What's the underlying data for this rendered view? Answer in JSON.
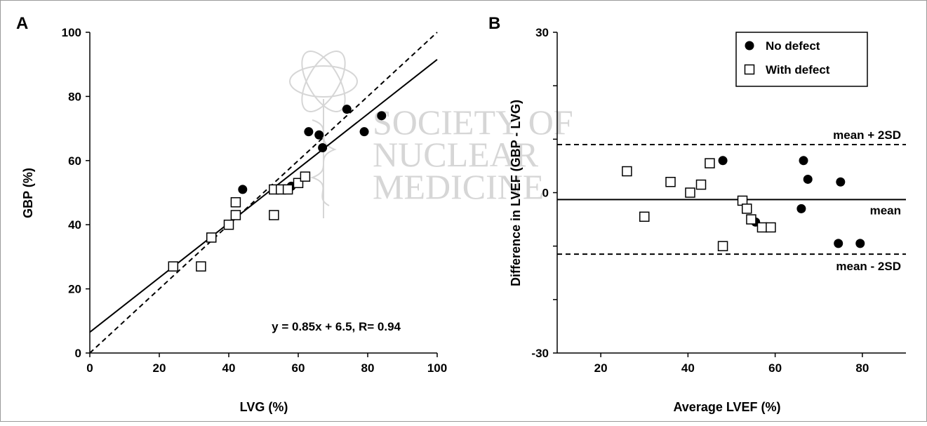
{
  "chart_data": [
    {
      "type": "scatter",
      "panel_label": "A",
      "xlabel": "LVG (%)",
      "ylabel": "GBP (%)",
      "xlim": [
        0,
        100
      ],
      "ylim": [
        0,
        100
      ],
      "xticks": [
        0,
        20,
        40,
        60,
        80,
        100
      ],
      "yticks": [
        0,
        20,
        40,
        60,
        80,
        100
      ],
      "series": [
        {
          "marker": "filled-circle",
          "color": "#000000",
          "points": [
            [
              44,
              51
            ],
            [
              58,
              52
            ],
            [
              63,
              69
            ],
            [
              66,
              68
            ],
            [
              67,
              64
            ],
            [
              74,
              76
            ],
            [
              79,
              69
            ],
            [
              84,
              74
            ]
          ]
        },
        {
          "marker": "open-square",
          "color": "#000000",
          "points": [
            [
              24,
              27
            ],
            [
              32,
              27
            ],
            [
              35,
              36
            ],
            [
              40,
              40
            ],
            [
              42,
              47
            ],
            [
              42,
              43
            ],
            [
              53,
              51
            ],
            [
              53,
              43
            ],
            [
              55,
              51
            ],
            [
              57,
              51
            ],
            [
              60,
              53
            ],
            [
              62,
              55
            ]
          ]
        }
      ],
      "lines": [
        {
          "style": "solid",
          "slope": 0.85,
          "intercept": 6.5
        },
        {
          "style": "dashed",
          "slope": 1,
          "intercept": 0
        }
      ],
      "annotation": "y = 0.85x + 6.5, R= 0.94"
    },
    {
      "type": "scatter",
      "panel_label": "B",
      "xlabel": "Average LVEF (%)",
      "ylabel": "Difference in LVEF (GBP - LVG)",
      "xlim": [
        10,
        90
      ],
      "ylim": [
        -30,
        30
      ],
      "xticks": [
        20,
        40,
        60,
        80
      ],
      "yticks": [
        -30,
        0,
        30
      ],
      "yminor": [
        -20,
        -10,
        10,
        20
      ],
      "series": [
        {
          "name": "No defect",
          "marker": "filled-circle",
          "color": "#000000",
          "points": [
            [
              48,
              6
            ],
            [
              55.5,
              -5.5
            ],
            [
              66,
              -3
            ],
            [
              66.5,
              6
            ],
            [
              67.5,
              2.5
            ],
            [
              74.5,
              -9.5
            ],
            [
              75,
              2
            ],
            [
              79.5,
              -9.5
            ]
          ]
        },
        {
          "name": "With defect",
          "marker": "open-square",
          "color": "#000000",
          "points": [
            [
              26,
              4
            ],
            [
              30,
              -4.5
            ],
            [
              36,
              2
            ],
            [
              40.5,
              0
            ],
            [
              43,
              1.5
            ],
            [
              45,
              5.5
            ],
            [
              48,
              -10
            ],
            [
              52.5,
              -1.5
            ],
            [
              53.5,
              -3
            ],
            [
              54.5,
              -5
            ],
            [
              57,
              -6.5
            ],
            [
              59,
              -6.5
            ]
          ]
        }
      ],
      "lines": [
        {
          "style": "solid",
          "y": -1.3,
          "label": "mean"
        },
        {
          "style": "dashed",
          "y": 9,
          "label": "mean + 2SD"
        },
        {
          "style": "dashed",
          "y": -11.5,
          "label": "mean - 2SD"
        }
      ],
      "legend_position": "top-right"
    }
  ],
  "watermark": {
    "lines": [
      "SOCIETY OF",
      "NUCLEAR",
      "MEDICINE"
    ]
  }
}
